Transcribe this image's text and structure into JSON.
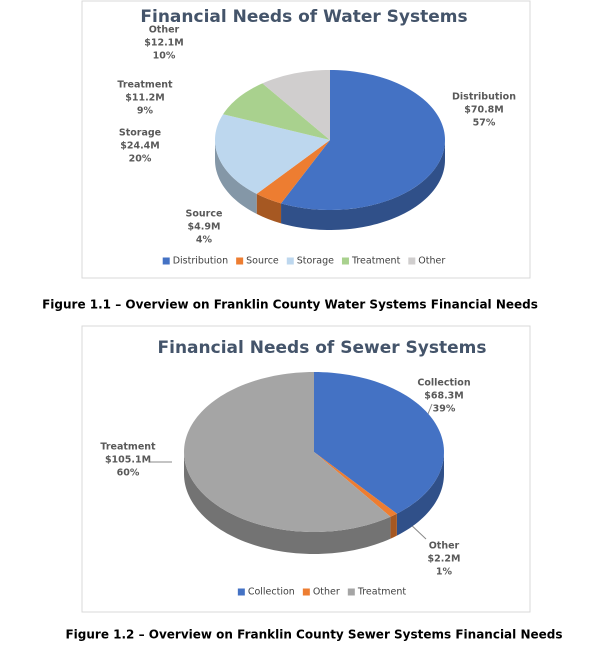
{
  "chart_data": [
    {
      "type": "pie",
      "title": "Financial Needs of Water Systems",
      "categories": [
        "Distribution",
        "Source",
        "Storage",
        "Treatment",
        "Other"
      ],
      "values": [
        57,
        4,
        20,
        9,
        10
      ],
      "value_labels": [
        "57%",
        "4%",
        "20%",
        "9%",
        "10%"
      ],
      "amounts": [
        70800000,
        4900000,
        24400000,
        11200000,
        12100000
      ],
      "amount_labels": [
        "$70.8M",
        "$4.9M",
        "$24.4M",
        "$11.2M",
        "$12.1M"
      ],
      "colors": [
        "#4472c4",
        "#ed7d31",
        "#bdd7ee",
        "#a9d18e",
        "#d0cece"
      ],
      "legend": "bottom"
    },
    {
      "type": "pie",
      "title": "Financial Needs of Sewer Systems",
      "categories": [
        "Collection",
        "Other",
        "Treatment"
      ],
      "values": [
        39,
        1,
        60
      ],
      "value_labels": [
        "39%",
        "1%",
        "60%"
      ],
      "amounts": [
        68300000,
        2200000,
        105100000
      ],
      "amount_labels": [
        "$68.3M",
        "$2.2M",
        "$105.1M"
      ],
      "colors": [
        "#4472c4",
        "#ed7d31",
        "#a5a5a5"
      ],
      "legend": "bottom"
    }
  ],
  "captions": [
    "Figure 1.1 – Overview on Franklin County Water Systems Financial Needs",
    "Figure 1.2 – Overview on Franklin County Sewer Systems Financial Needs"
  ]
}
